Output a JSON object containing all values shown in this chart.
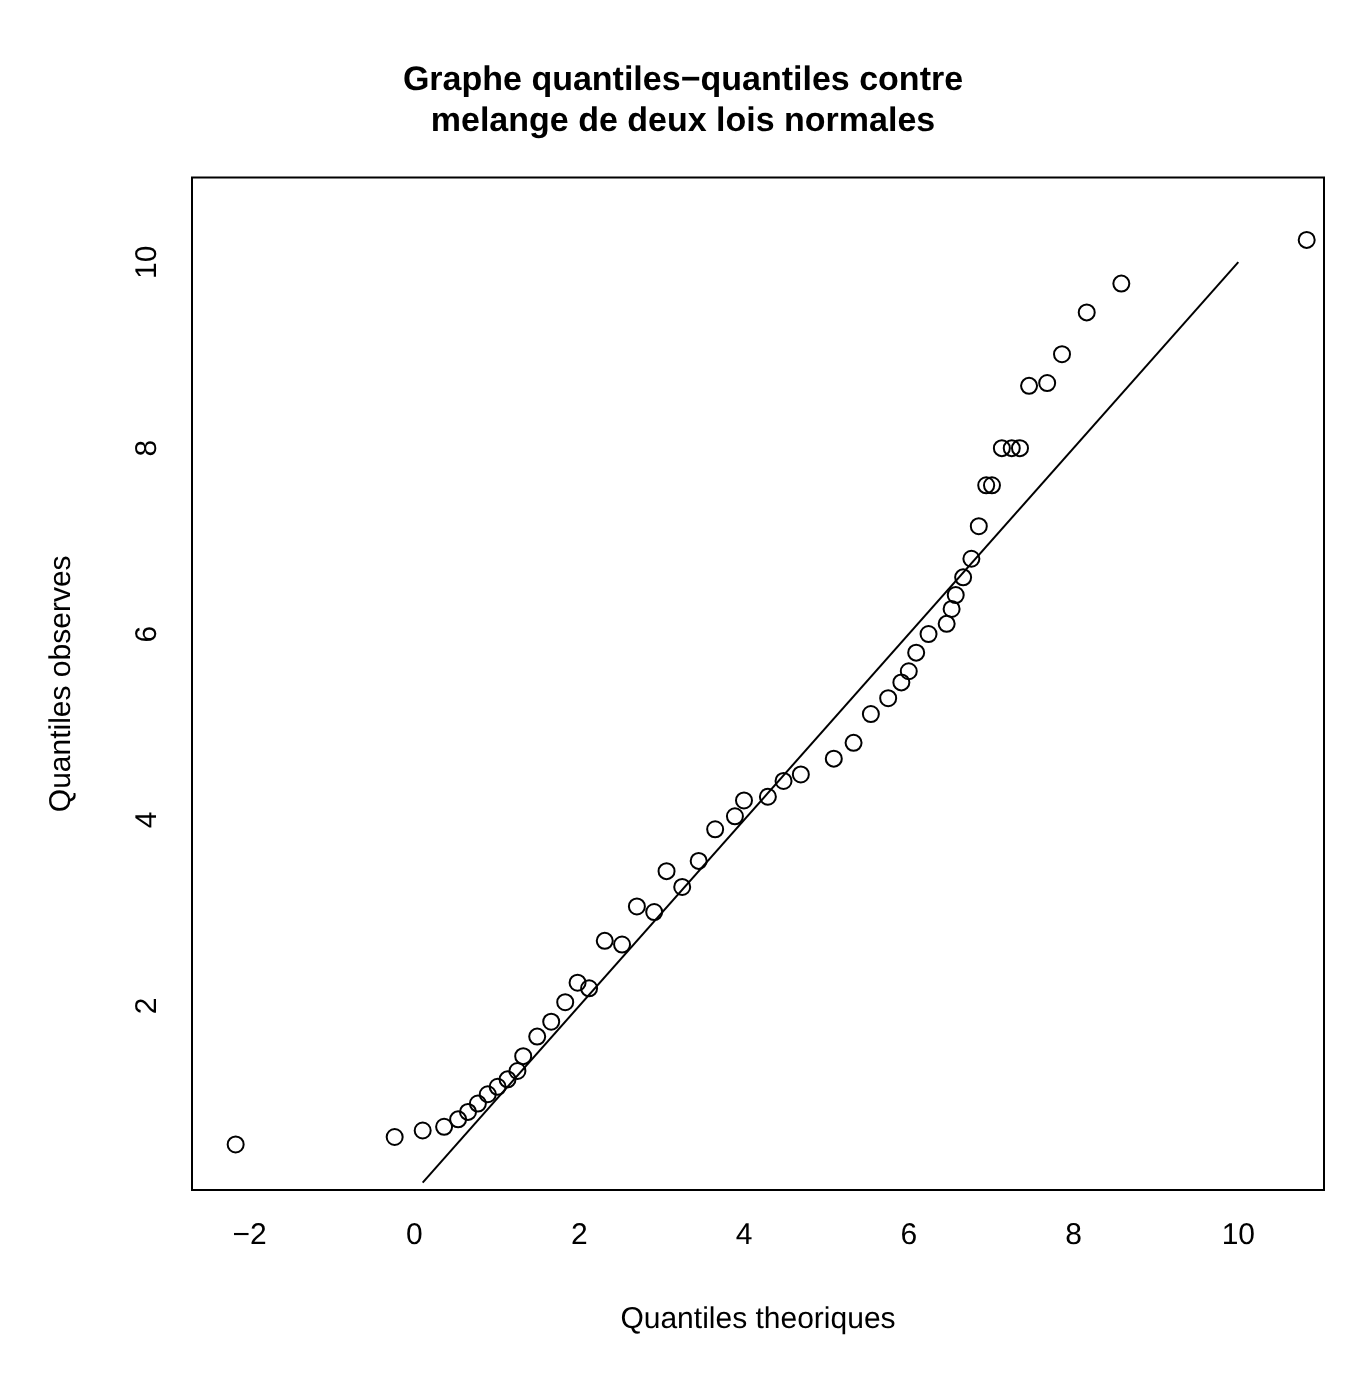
{
  "chart_data": {
    "type": "scatter",
    "title": "Graphe quantiles−quantiles contre melange de deux lois normales",
    "xlabel": "Quantiles theoriques",
    "ylabel": "Quantiles observes",
    "xlim": [
      -2.7,
      11.04
    ],
    "ylim": [
      0.02,
      10.91
    ],
    "xticks": [
      {
        "value": -2,
        "label": "−2"
      },
      0,
      2,
      4,
      6,
      8,
      10
    ],
    "yticks": [
      2,
      4,
      6,
      8,
      10
    ],
    "grid": false,
    "legend": false,
    "marker": "circle",
    "series": [
      {
        "color": "#000000",
        "x": [
          -2.17,
          -0.24,
          0.1,
          0.36,
          0.53,
          0.65,
          0.77,
          0.89,
          1.01,
          1.13,
          1.25,
          1.32,
          1.49,
          1.66,
          1.83,
          1.98,
          2.12,
          2.31,
          2.52,
          2.7,
          2.91,
          3.06,
          3.25,
          3.45,
          3.65,
          3.89,
          4.0,
          4.29,
          4.48,
          4.69,
          5.09,
          5.33,
          5.54,
          5.75,
          5.91,
          6.0,
          6.09,
          6.24,
          6.46,
          6.52,
          6.57,
          6.66,
          6.76,
          6.85,
          6.94,
          7.01,
          7.13,
          7.25,
          7.35,
          7.46,
          7.68,
          7.86,
          8.16,
          8.58,
          10.83
        ],
        "values": [
          0.51,
          0.59,
          0.66,
          0.7,
          0.78,
          0.86,
          0.95,
          1.05,
          1.13,
          1.21,
          1.3,
          1.46,
          1.67,
          1.83,
          2.04,
          2.25,
          2.19,
          2.7,
          2.66,
          3.07,
          3.01,
          3.45,
          3.28,
          3.56,
          3.9,
          4.04,
          4.21,
          4.25,
          4.42,
          4.49,
          4.66,
          4.83,
          5.14,
          5.31,
          5.48,
          5.6,
          5.8,
          6.0,
          6.11,
          6.27,
          6.42,
          6.61,
          6.81,
          7.16,
          7.6,
          7.6,
          8.0,
          8.0,
          8.0,
          8.67,
          8.7,
          9.01,
          9.46,
          9.77,
          10.24
        ]
      },
      {
        "type": "line",
        "color": "#000000",
        "x": [
          0.1,
          10
        ],
        "values": [
          0.1,
          10
        ],
        "marker": "none",
        "line_style": "solid"
      }
    ]
  }
}
